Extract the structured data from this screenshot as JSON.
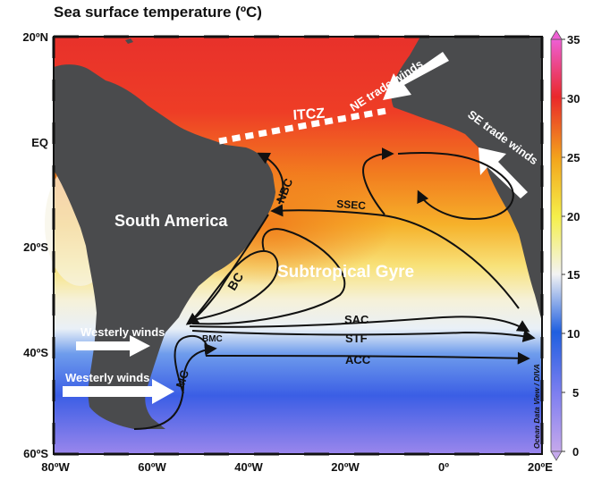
{
  "title": "Sea surface temperature (ºC)",
  "lat_labels": [
    "20ºN",
    "EQ",
    "20ºS",
    "40ºS",
    "60ºS"
  ],
  "lon_labels": [
    "80ºW",
    "60ºW",
    "40ºW",
    "20ºW",
    "0º",
    "20ºE"
  ],
  "colorbar": {
    "ticks": [
      "35",
      "30",
      "25",
      "20",
      "15",
      "10",
      "5",
      "0"
    ],
    "colors": [
      "#ee5fd4",
      "#e9282a",
      "#f3a51c",
      "#f5ef4a",
      "#f3f3f3",
      "#1f5fe0",
      "#7e7ff0",
      "#c5a8ec"
    ]
  },
  "regions": {
    "south_america": "South America",
    "gyre": "Subtropical Gyre"
  },
  "features": {
    "itcz": "ITCZ",
    "ne_trades": "NE trade winds",
    "se_trades": "SE trade winds",
    "westerly_1": "Westerly winds",
    "westerly_2": "Westerly winds"
  },
  "currents": {
    "nbc": "NBC",
    "ssec": "SSEC",
    "bc": "BC",
    "sac": "SAC",
    "stf": "STF",
    "acc": "ACC",
    "bmc": "BMC",
    "mc": "MC"
  },
  "credit": "Ocean Data View / DIVA",
  "colors": {
    "land": "#4a4b4d",
    "current": "#111111",
    "arrow": "#ffffff"
  }
}
